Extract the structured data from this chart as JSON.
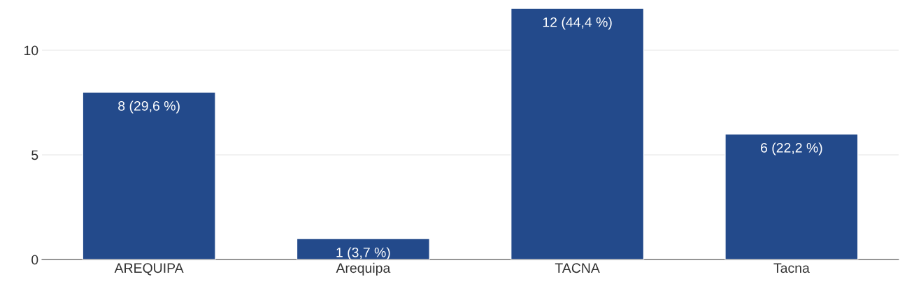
{
  "chart_data": {
    "type": "bar",
    "categories": [
      "AREQUIPA",
      "Arequipa",
      "TACNA",
      "Tacna"
    ],
    "values": [
      8,
      1,
      12,
      6
    ],
    "value_labels": [
      "8 (29,6 %)",
      "1 (3,7 %)",
      "12 (44,4 %)",
      "6 (22,2 %)"
    ],
    "color": "#234a8b",
    "ylim": [
      0,
      12
    ],
    "yticks": [
      0,
      5,
      10
    ],
    "grid": "y"
  }
}
